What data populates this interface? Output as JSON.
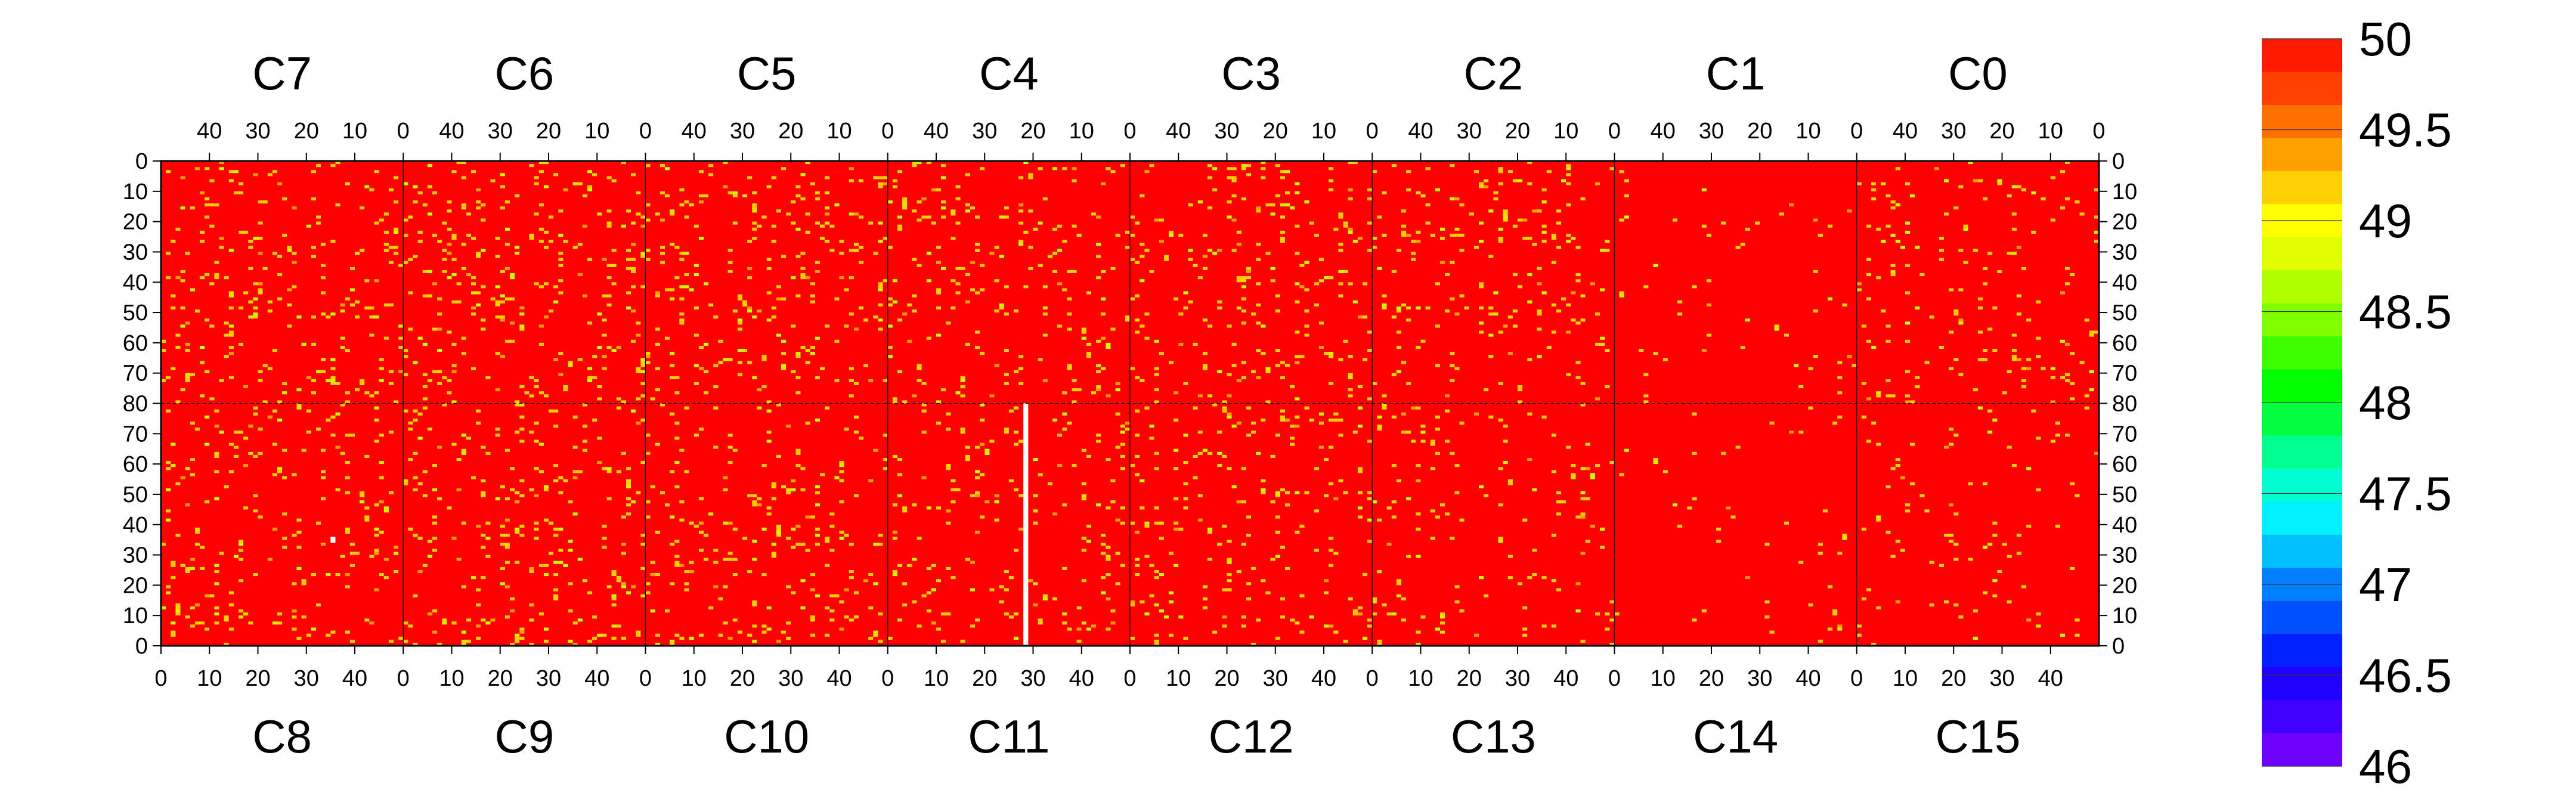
{
  "chart_data": {
    "type": "heatmap",
    "title": "",
    "top_channels": [
      "C7",
      "C6",
      "C5",
      "C4",
      "C3",
      "C2",
      "C1",
      "C0"
    ],
    "bottom_channels": [
      "C8",
      "C9",
      "C10",
      "C11",
      "C12",
      "C13",
      "C14",
      "C15"
    ],
    "top_x_ticks": [
      "40",
      "30",
      "20",
      "10",
      "0"
    ],
    "top_x_ticks_reversed": true,
    "bottom_x_ticks": [
      "0",
      "10",
      "20",
      "30",
      "40"
    ],
    "channel_x_range": [
      0,
      50
    ],
    "y_ticks_upper": [
      "0",
      "10",
      "20",
      "30",
      "40",
      "50",
      "60",
      "70",
      "80"
    ],
    "y_ticks_lower": [
      "70",
      "60",
      "50",
      "40",
      "30",
      "20",
      "10",
      "0"
    ],
    "upper_y_range": [
      0,
      80
    ],
    "lower_y_range": [
      80,
      0
    ],
    "dominant_value": 50,
    "colorbar": {
      "min": 46,
      "max": 50,
      "labels": [
        "50",
        "49.5",
        "49",
        "48.5",
        "48",
        "47.5",
        "47",
        "46.5",
        "46"
      ],
      "colors": [
        "#ff1a00",
        "#ff4000",
        "#ff7000",
        "#ffa000",
        "#ffd000",
        "#ffff00",
        "#e0ff00",
        "#b0ff00",
        "#80ff00",
        "#40ff00",
        "#00ff00",
        "#00ff40",
        "#00ff90",
        "#00ffd0",
        "#00f0ff",
        "#00c0ff",
        "#0080ff",
        "#0050ff",
        "#0020ff",
        "#2000ff",
        "#4000ff",
        "#7000ff"
      ]
    },
    "anomalies": [
      {
        "channel": "C11",
        "x": [
          28,
          29
        ],
        "y": [
          0,
          80
        ],
        "value": null,
        "note": "dead column (white)"
      },
      {
        "channel": "C8",
        "x": [
          35,
          36
        ],
        "y": [
          34,
          36
        ],
        "value": null,
        "note": "white pixel"
      }
    ],
    "scattered_low_values": [
      49.0,
      49.5
    ],
    "colors": {
      "high": "#ff0000",
      "mid": "#ffd200",
      "low": "#bfff00",
      "dead": "#ffffff"
    }
  }
}
